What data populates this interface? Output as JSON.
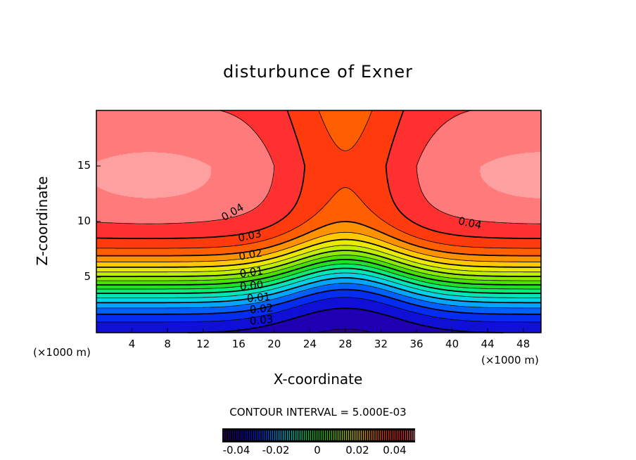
{
  "chart_data": {
    "type": "contour",
    "title": "disturbunce of Exner",
    "xlabel": "X-coordinate",
    "ylabel": "Z-coordinate",
    "x_unit": "(×1000 m)",
    "z_unit": "(×1000 m)",
    "xlim": [
      0,
      50
    ],
    "ylim": [
      0,
      20
    ],
    "xticks": [
      4,
      8,
      12,
      16,
      20,
      24,
      28,
      32,
      36,
      40,
      44,
      48
    ],
    "yticks": [
      5,
      10,
      15
    ],
    "contour_interval": 0.005,
    "value_range": [
      -0.05,
      0.05
    ],
    "contour_labels": [
      "0.04",
      "0.03",
      "0.02",
      "0.01",
      "0.00",
      "0.01",
      "0.02",
      "0.03",
      "0.04"
    ],
    "colorbar_ticks": [
      "-0.04",
      "-0.02",
      "0",
      "0.02",
      "0.04"
    ],
    "contour_interval_text": "CONTOUR INTERVAL = 5.000E-03"
  }
}
